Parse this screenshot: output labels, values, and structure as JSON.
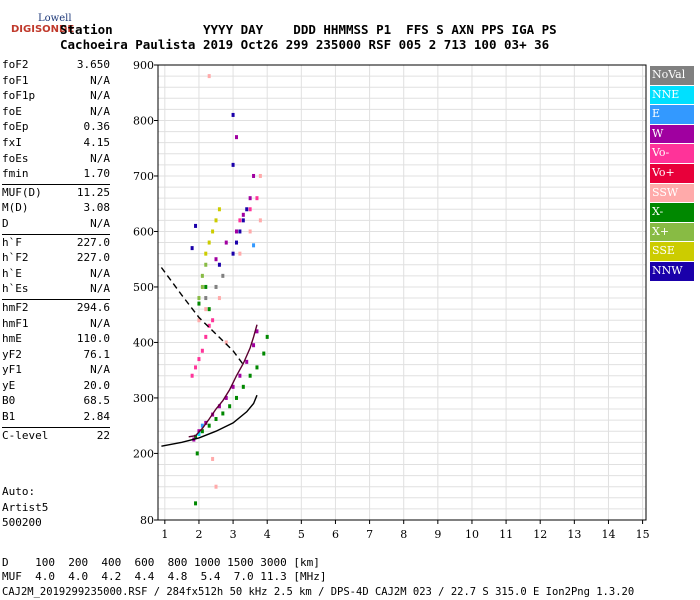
{
  "logo": {
    "top": "Lowell",
    "main": "DIGISONDE"
  },
  "header": {
    "line1": "Station            YYYY DAY    DDD HHMMSS P1  FFS S AXN PPS IGA PS",
    "line2": "Cachoeira Paulista 2019 Oct26 299 235000 RSF 005 2 713 100 03+ 36"
  },
  "params": {
    "group1": [
      {
        "label": "foF2",
        "value": "3.650"
      },
      {
        "label": "foF1",
        "value": "N/A"
      },
      {
        "label": "foF1p",
        "value": "N/A"
      },
      {
        "label": "foE",
        "value": "N/A"
      },
      {
        "label": "foEp",
        "value": "0.36"
      },
      {
        "label": "fxI",
        "value": "4.15"
      },
      {
        "label": "foEs",
        "value": "N/A"
      },
      {
        "label": "fmin",
        "value": "1.70"
      }
    ],
    "group2": [
      {
        "label": "MUF(D)",
        "value": "11.25"
      },
      {
        "label": "M(D)",
        "value": "3.08"
      },
      {
        "label": "D",
        "value": "N/A"
      }
    ],
    "group3": [
      {
        "label": "h`F",
        "value": "227.0"
      },
      {
        "label": "h`F2",
        "value": "227.0"
      },
      {
        "label": "h`E",
        "value": "N/A"
      },
      {
        "label": "h`Es",
        "value": "N/A"
      }
    ],
    "group4": [
      {
        "label": "hmF2",
        "value": "294.6"
      },
      {
        "label": "hmF1",
        "value": "N/A"
      },
      {
        "label": "hmE",
        "value": "110.0"
      },
      {
        "label": "yF2",
        "value": "76.1"
      },
      {
        "label": "yF1",
        "value": "N/A"
      },
      {
        "label": "yE",
        "value": "20.0"
      },
      {
        "label": "B0",
        "value": "68.5"
      },
      {
        "label": "B1",
        "value": "2.84"
      }
    ],
    "group5": [
      {
        "label": "C-level",
        "value": "22"
      }
    ]
  },
  "auto": {
    "line1": "Auto:",
    "line2": "Artist5",
    "line3": "500200"
  },
  "legend": [
    {
      "label": "NoVal",
      "color": "#808080"
    },
    {
      "label": "NNE",
      "color": "#00e0ff"
    },
    {
      "label": "E",
      "color": "#3399ff"
    },
    {
      "label": "W",
      "color": "#a000a0"
    },
    {
      "label": "Vo-",
      "color": "#ff3399"
    },
    {
      "label": "Vo+",
      "color": "#e8003a"
    },
    {
      "label": "SSW",
      "color": "#ffaaaa"
    },
    {
      "label": "X-",
      "color": "#008800"
    },
    {
      "label": "X+",
      "color": "#88bb44"
    },
    {
      "label": "SSE",
      "color": "#cccc00"
    },
    {
      "label": "NNW",
      "color": "#1a00aa"
    }
  ],
  "footer": {
    "line1": "D    100  200  400  600  800 1000 1500 3000 [km]",
    "line2": "MUF  4.0  4.0  4.2  4.4  4.8  5.4  7.0 11.3 [MHz]",
    "line3": "CAJ2M_2019299235000.RSF / 284fx512h 50 kHz 2.5 km / DPS-4D CAJ2M 023 / 22.7 S 315.0 E Ion2Png 1.3.20"
  },
  "chart_data": {
    "type": "scatter",
    "title": "",
    "xlabel": "",
    "ylabel": "",
    "xlim": [
      0.8,
      15.1
    ],
    "ylim": [
      80,
      900
    ],
    "x_ticks": [
      1,
      2,
      3,
      4,
      5,
      6,
      7,
      8,
      9,
      10,
      11,
      12,
      13,
      14,
      15
    ],
    "y_ticks": [
      80,
      200,
      300,
      400,
      500,
      600,
      700,
      800,
      900
    ],
    "grid": true,
    "legend_position": "right",
    "series": [
      {
        "name": "X-",
        "color": "#008800",
        "points": [
          [
            1.9,
            230
          ],
          [
            2.1,
            240
          ],
          [
            2.3,
            250
          ],
          [
            2.5,
            262
          ],
          [
            2.7,
            272
          ],
          [
            2.9,
            285
          ],
          [
            3.1,
            300
          ],
          [
            3.3,
            320
          ],
          [
            3.5,
            340
          ],
          [
            3.7,
            355
          ],
          [
            3.9,
            380
          ],
          [
            4.0,
            410
          ],
          [
            2.2,
            500
          ],
          [
            2.3,
            460
          ],
          [
            2.0,
            470
          ],
          [
            1.95,
            200
          ],
          [
            1.9,
            110
          ]
        ]
      },
      {
        "name": "W",
        "color": "#a000a0",
        "points": [
          [
            1.85,
            225
          ],
          [
            2.0,
            240
          ],
          [
            2.2,
            255
          ],
          [
            2.4,
            270
          ],
          [
            2.6,
            285
          ],
          [
            2.8,
            300
          ],
          [
            3.0,
            320
          ],
          [
            3.2,
            340
          ],
          [
            3.4,
            365
          ],
          [
            3.6,
            395
          ],
          [
            3.7,
            420
          ],
          [
            2.5,
            550
          ],
          [
            2.8,
            580
          ],
          [
            3.1,
            600
          ],
          [
            3.3,
            630
          ],
          [
            3.5,
            660
          ],
          [
            3.6,
            700
          ],
          [
            3.1,
            770
          ]
        ]
      },
      {
        "name": "Vo-",
        "color": "#ff3399",
        "points": [
          [
            1.8,
            340
          ],
          [
            1.9,
            355
          ],
          [
            2.0,
            370
          ],
          [
            2.1,
            385
          ],
          [
            2.2,
            410
          ],
          [
            2.4,
            440
          ],
          [
            2.3,
            430
          ],
          [
            3.2,
            620
          ],
          [
            3.5,
            640
          ],
          [
            3.7,
            660
          ]
        ]
      },
      {
        "name": "SSE",
        "color": "#cccc00",
        "points": [
          [
            2.3,
            580
          ],
          [
            2.4,
            600
          ],
          [
            2.5,
            620
          ],
          [
            2.6,
            640
          ],
          [
            2.2,
            560
          ]
        ]
      },
      {
        "name": "NNW",
        "color": "#1a00aa",
        "points": [
          [
            3.0,
            560
          ],
          [
            3.1,
            580
          ],
          [
            3.2,
            600
          ],
          [
            3.3,
            620
          ],
          [
            3.4,
            640
          ],
          [
            3.0,
            720
          ],
          [
            3.0,
            810
          ],
          [
            2.6,
            540
          ],
          [
            1.8,
            570
          ],
          [
            1.9,
            610
          ]
        ]
      },
      {
        "name": "SSW",
        "color": "#ffaaaa",
        "points": [
          [
            2.0,
            440
          ],
          [
            2.2,
            460
          ],
          [
            2.6,
            480
          ],
          [
            3.2,
            560
          ],
          [
            3.5,
            600
          ],
          [
            3.8,
            620
          ],
          [
            3.8,
            700
          ],
          [
            2.4,
            190
          ],
          [
            2.5,
            140
          ],
          [
            2.8,
            400
          ],
          [
            2.3,
            880
          ]
        ]
      },
      {
        "name": "X+",
        "color": "#88bb44",
        "points": [
          [
            2.0,
            480
          ],
          [
            2.1,
            500
          ],
          [
            2.1,
            520
          ],
          [
            2.2,
            540
          ]
        ]
      },
      {
        "name": "E",
        "color": "#3399ff",
        "points": [
          [
            2.1,
            250
          ],
          [
            3.6,
            575
          ]
        ]
      },
      {
        "name": "NNE",
        "color": "#00e0ff",
        "points": [
          [
            2.0,
            235
          ]
        ]
      },
      {
        "name": "NoVal",
        "color": "#808080",
        "points": [
          [
            2.2,
            480
          ],
          [
            2.5,
            500
          ],
          [
            2.7,
            520
          ]
        ]
      }
    ],
    "lines": [
      {
        "name": "O-trace",
        "color": "#5b0030",
        "points": [
          [
            1.7,
            230
          ],
          [
            1.9,
            232
          ],
          [
            2.1,
            245
          ],
          [
            2.3,
            262
          ],
          [
            2.5,
            280
          ],
          [
            2.7,
            295
          ],
          [
            2.9,
            315
          ],
          [
            3.1,
            340
          ],
          [
            3.3,
            362
          ],
          [
            3.5,
            390
          ],
          [
            3.6,
            410
          ],
          [
            3.7,
            432
          ]
        ]
      },
      {
        "name": "profile",
        "color": "#000000",
        "points": [
          [
            0.9,
            213
          ],
          [
            1.5,
            220
          ],
          [
            2.0,
            228
          ],
          [
            2.5,
            240
          ],
          [
            3.0,
            255
          ],
          [
            3.4,
            275
          ],
          [
            3.6,
            290
          ],
          [
            3.7,
            305
          ]
        ]
      },
      {
        "name": "model",
        "color": "#000000",
        "dash": true,
        "points": [
          [
            0.9,
            535
          ],
          [
            1.5,
            485
          ],
          [
            2.0,
            445
          ],
          [
            2.5,
            415
          ],
          [
            3.0,
            385
          ],
          [
            3.3,
            360
          ]
        ]
      }
    ]
  }
}
